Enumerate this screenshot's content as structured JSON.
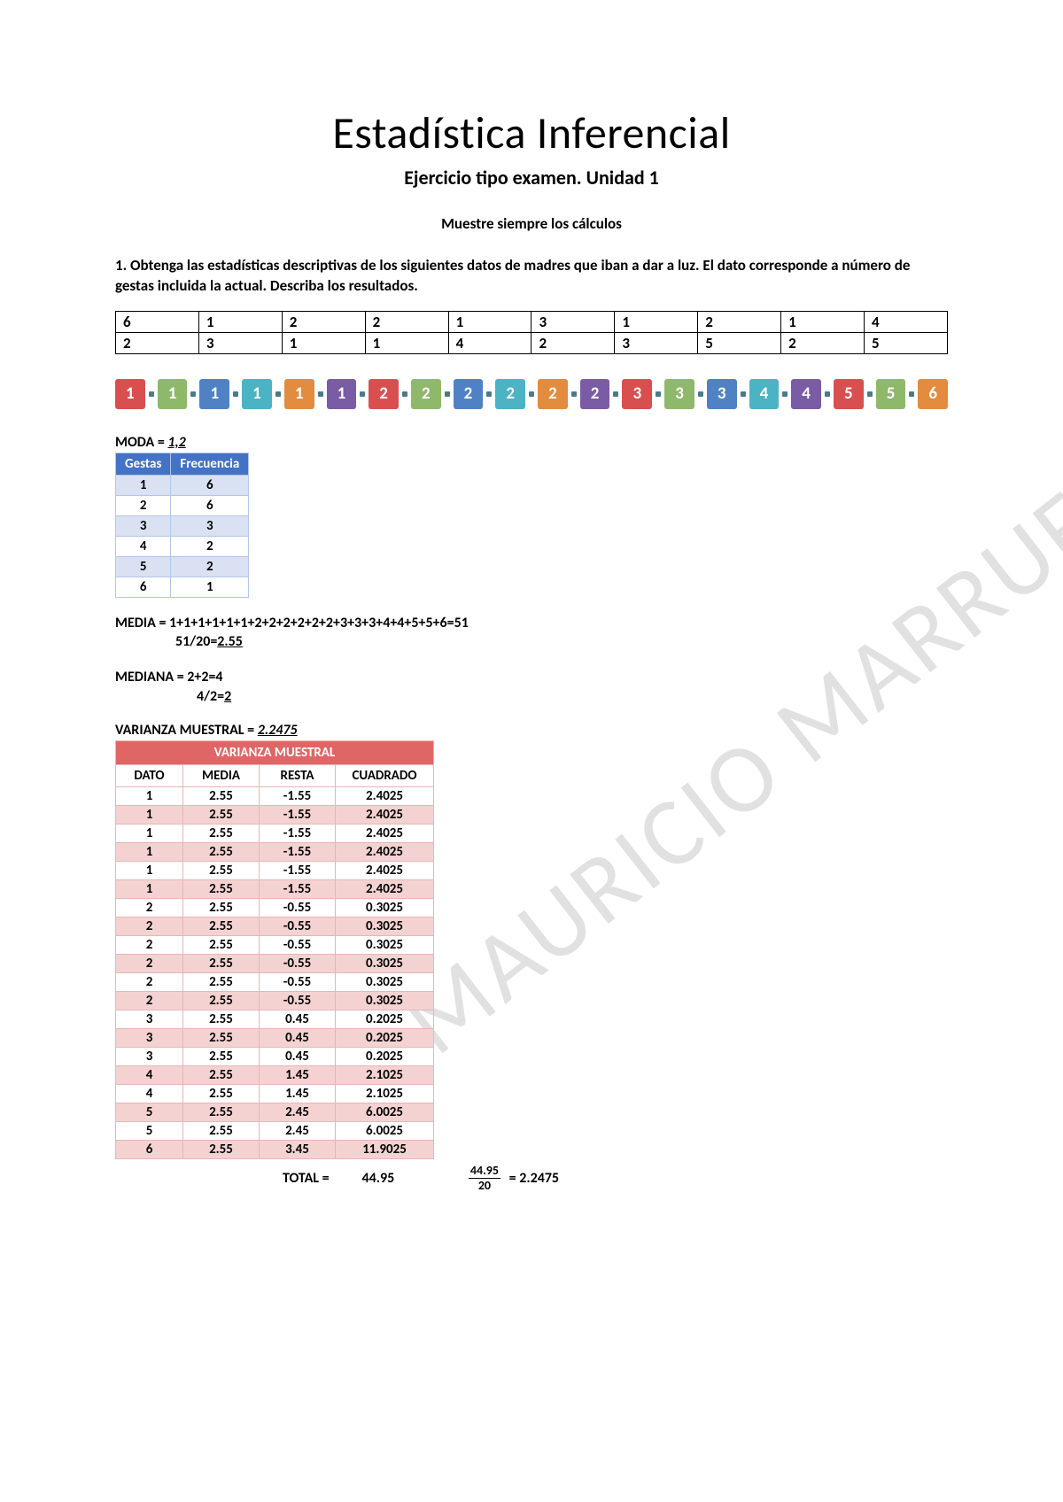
{
  "title": "Estadística Inferencial",
  "subtitle": "Ejercicio tipo examen. Unidad 1",
  "instruction": "Muestre siempre los cálculos",
  "question": "1. Obtenga las estadísticas descriptivas de los siguientes datos de madres que iban a dar a luz. El dato corresponde a número de gestas incluida la actual. Describa los resultados.",
  "watermark": "MAURICIO MARRUFO",
  "raw_data": {
    "row1": [
      "6",
      "1",
      "2",
      "2",
      "1",
      "3",
      "1",
      "2",
      "1",
      "4"
    ],
    "row2": [
      "2",
      "3",
      "1",
      "1",
      "4",
      "2",
      "3",
      "5",
      "2",
      "5"
    ]
  },
  "sorted": [
    {
      "v": "1",
      "c": "#d94f4f"
    },
    {
      "v": "1",
      "c": "#8fb96a"
    },
    {
      "v": "1",
      "c": "#4f82c4"
    },
    {
      "v": "1",
      "c": "#4bb3c4"
    },
    {
      "v": "1",
      "c": "#e38b3e"
    },
    {
      "v": "1",
      "c": "#7a5ba6"
    },
    {
      "v": "2",
      "c": "#d94f4f"
    },
    {
      "v": "2",
      "c": "#8fb96a"
    },
    {
      "v": "2",
      "c": "#4f82c4"
    },
    {
      "v": "2",
      "c": "#4bb3c4"
    },
    {
      "v": "2",
      "c": "#e38b3e"
    },
    {
      "v": "2",
      "c": "#7a5ba6"
    },
    {
      "v": "3",
      "c": "#d94f4f"
    },
    {
      "v": "3",
      "c": "#8fb96a"
    },
    {
      "v": "3",
      "c": "#4f82c4"
    },
    {
      "v": "4",
      "c": "#4bb3c4"
    },
    {
      "v": "4",
      "c": "#7a5ba6"
    },
    {
      "v": "5",
      "c": "#d94f4f"
    },
    {
      "v": "5",
      "c": "#8fb96a"
    },
    {
      "v": "6",
      "c": "#e38b3e"
    }
  ],
  "moda": {
    "label": "MODA = ",
    "value": "1,2",
    "headers": [
      "Gestas",
      "Frecuencia"
    ],
    "rows": [
      [
        "1",
        "6"
      ],
      [
        "2",
        "6"
      ],
      [
        "3",
        "3"
      ],
      [
        "4",
        "2"
      ],
      [
        "5",
        "2"
      ],
      [
        "6",
        "1"
      ]
    ]
  },
  "media": {
    "line1": "MEDIA = 1+1+1+1+1+1+2+2+2+2+2+2+3+3+3+4+4+5+5+6=51",
    "line2_prefix": "51/20=",
    "line2_value": "2.55"
  },
  "mediana": {
    "line1": "MEDIANA = 2+2=4",
    "line2_prefix": "4/2=",
    "line2_value": "2"
  },
  "variance": {
    "label": "VARIANZA MUESTRAL = ",
    "value": "2.2475",
    "title": "VARIANZA MUESTRAL",
    "headers": [
      "DATO",
      "MEDIA",
      "RESTA",
      "CUADRADO"
    ],
    "rows": [
      [
        "1",
        "2.55",
        "-1.55",
        "2.4025"
      ],
      [
        "1",
        "2.55",
        "-1.55",
        "2.4025"
      ],
      [
        "1",
        "2.55",
        "-1.55",
        "2.4025"
      ],
      [
        "1",
        "2.55",
        "-1.55",
        "2.4025"
      ],
      [
        "1",
        "2.55",
        "-1.55",
        "2.4025"
      ],
      [
        "1",
        "2.55",
        "-1.55",
        "2.4025"
      ],
      [
        "2",
        "2.55",
        "-0.55",
        "0.3025"
      ],
      [
        "2",
        "2.55",
        "-0.55",
        "0.3025"
      ],
      [
        "2",
        "2.55",
        "-0.55",
        "0.3025"
      ],
      [
        "2",
        "2.55",
        "-0.55",
        "0.3025"
      ],
      [
        "2",
        "2.55",
        "-0.55",
        "0.3025"
      ],
      [
        "2",
        "2.55",
        "-0.55",
        "0.3025"
      ],
      [
        "3",
        "2.55",
        "0.45",
        "0.2025"
      ],
      [
        "3",
        "2.55",
        "0.45",
        "0.2025"
      ],
      [
        "3",
        "2.55",
        "0.45",
        "0.2025"
      ],
      [
        "4",
        "2.55",
        "1.45",
        "2.1025"
      ],
      [
        "4",
        "2.55",
        "1.45",
        "2.1025"
      ],
      [
        "5",
        "2.55",
        "2.45",
        "6.0025"
      ],
      [
        "5",
        "2.55",
        "2.45",
        "6.0025"
      ],
      [
        "6",
        "2.55",
        "3.45",
        "11.9025"
      ]
    ],
    "total_label": "TOTAL =",
    "total_value": "44.95",
    "fraction_num": "44.95",
    "fraction_den": "20",
    "fraction_result": "= 2.2475"
  }
}
